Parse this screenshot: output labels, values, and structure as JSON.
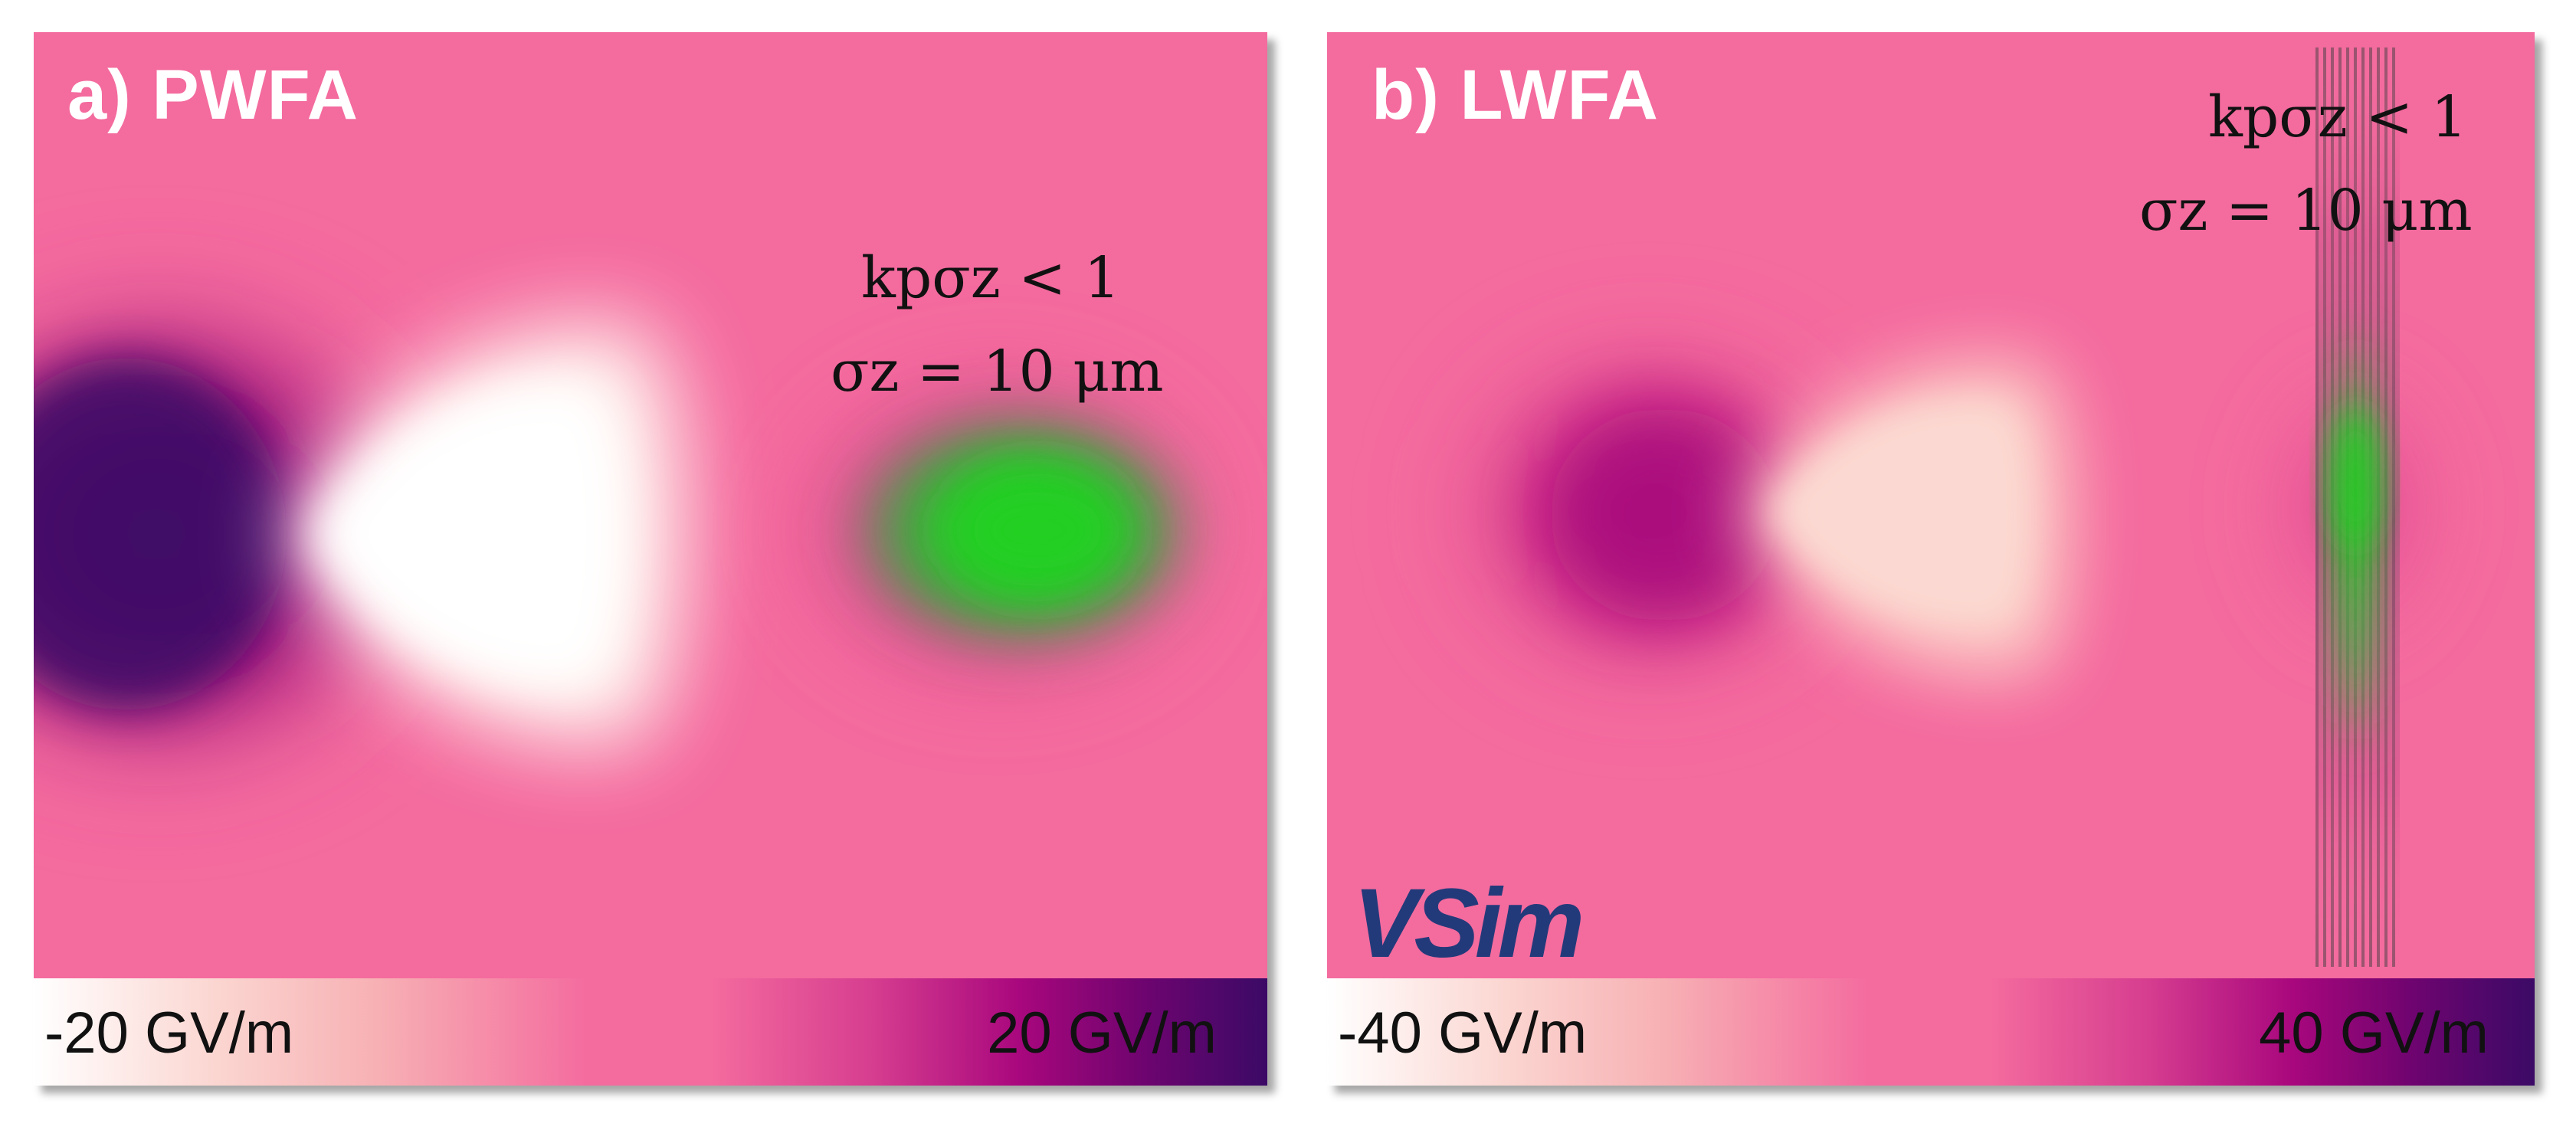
{
  "panels": [
    {
      "title": "a) PWFA",
      "annotation_line1": "kpσz < 1",
      "annotation_line2": "σz = 10 μm",
      "colorbar": {
        "min_label": "-20 GV/m",
        "max_label": "20 GV/m"
      }
    },
    {
      "title": "b) LWFA",
      "annotation_line1": "kpσz < 1",
      "annotation_line2": "σz = 10 μm",
      "colorbar": {
        "min_label": "-40 GV/m",
        "max_label": "40 GV/m"
      },
      "logo": "VSim"
    }
  ],
  "colors": {
    "background_pink": "#f46b9e",
    "field_dark": "#3b0a66",
    "field_light": "#ffffff",
    "beam_green": "#22d022",
    "logo_blue": "#233a7a"
  }
}
